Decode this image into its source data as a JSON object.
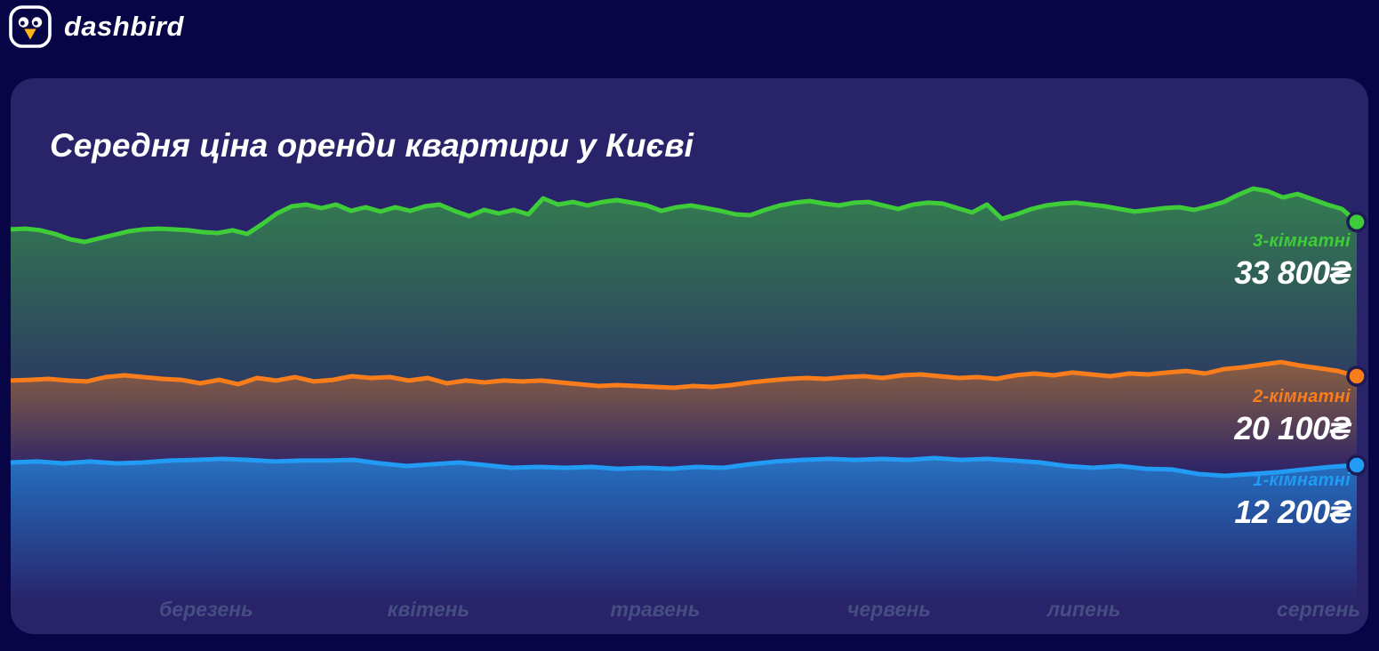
{
  "brand": {
    "name": "dashbird"
  },
  "theme": {
    "page_bg": "#070545",
    "card_bg": "#292369",
    "title_color": "#ffffff",
    "value_color": "#ffffff",
    "axis_label_color": "#454e82",
    "logo_color": "#ffffff",
    "logo_beak_color": "#ffb612",
    "dot_ring_color": "#1d1a54"
  },
  "chart_data": {
    "type": "line",
    "title": "Середня ціна оренди квартири у Києві",
    "x_tick_labels": [
      "березень",
      "квітень",
      "травень",
      "червень",
      "липень",
      "серпень"
    ],
    "currency": "₴",
    "y_axis": {
      "visible": false,
      "approx_range_uah": [
        0,
        46500
      ]
    },
    "grid": false,
    "legend_position": "right-inline",
    "series": [
      {
        "name": "3-кімнатні",
        "color": "#3ecd39",
        "current_value": 33800,
        "current_value_label": "33 800₴",
        "values": [
          33140,
          33210,
          33060,
          32740,
          32270,
          32030,
          32350,
          32660,
          32980,
          33140,
          33210,
          33140,
          33060,
          32900,
          32820,
          33060,
          32740,
          33610,
          34560,
          35190,
          35350,
          35030,
          35350,
          34790,
          35110,
          34720,
          35110,
          34790,
          35190,
          35350,
          34790,
          34320,
          34870,
          34560,
          34870,
          34480,
          35900,
          35350,
          35580,
          35270,
          35580,
          35740,
          35510,
          35270,
          34790,
          35110,
          35270,
          35030,
          34790,
          34480,
          34400,
          34870,
          35270,
          35510,
          35660,
          35430,
          35270,
          35510,
          35580,
          35270,
          34950,
          35350,
          35510,
          35430,
          35030,
          34640,
          35350,
          34080,
          34480,
          34950,
          35270,
          35430,
          35510,
          35350,
          35190,
          34950,
          34720,
          34870,
          35030,
          35110,
          34870,
          35190,
          35580,
          36220,
          36770,
          36530,
          35980,
          36290,
          35820,
          35350,
          34950,
          33800
        ]
      },
      {
        "name": "2-кімнатні",
        "color": "#fa7d1c",
        "current_value": 20100,
        "current_value_label": "20 100₴",
        "values": [
          19710,
          19780,
          19860,
          19710,
          19630,
          20020,
          20180,
          20020,
          19860,
          19780,
          19470,
          19780,
          19390,
          19940,
          19710,
          20020,
          19630,
          19780,
          20100,
          19940,
          20020,
          19710,
          19940,
          19470,
          19710,
          19550,
          19710,
          19630,
          19710,
          19550,
          19390,
          19230,
          19310,
          19230,
          19150,
          19070,
          19230,
          19150,
          19310,
          19550,
          19710,
          19860,
          19940,
          19860,
          20020,
          20100,
          19940,
          20180,
          20260,
          20100,
          19940,
          20020,
          19860,
          20180,
          20340,
          20180,
          20420,
          20260,
          20100,
          20340,
          20260,
          20420,
          20570,
          20340,
          20730,
          20890,
          21130,
          21360,
          21050,
          20810,
          20570,
          20100
        ]
      },
      {
        "name": "1-кімнатні",
        "color": "#219bf3",
        "current_value": 12200,
        "current_value_label": "12 200₴",
        "values": [
          12440,
          12520,
          12360,
          12520,
          12360,
          12440,
          12600,
          12670,
          12750,
          12670,
          12520,
          12600,
          12600,
          12670,
          12360,
          12120,
          12280,
          12440,
          12200,
          11960,
          12040,
          11960,
          12040,
          11880,
          11960,
          11880,
          12040,
          11960,
          12280,
          12520,
          12670,
          12750,
          12670,
          12750,
          12670,
          12830,
          12670,
          12750,
          12600,
          12440,
          12120,
          11960,
          12120,
          11880,
          11810,
          11410,
          11250,
          11410,
          11570,
          11810,
          12040,
          12200
        ]
      }
    ]
  }
}
